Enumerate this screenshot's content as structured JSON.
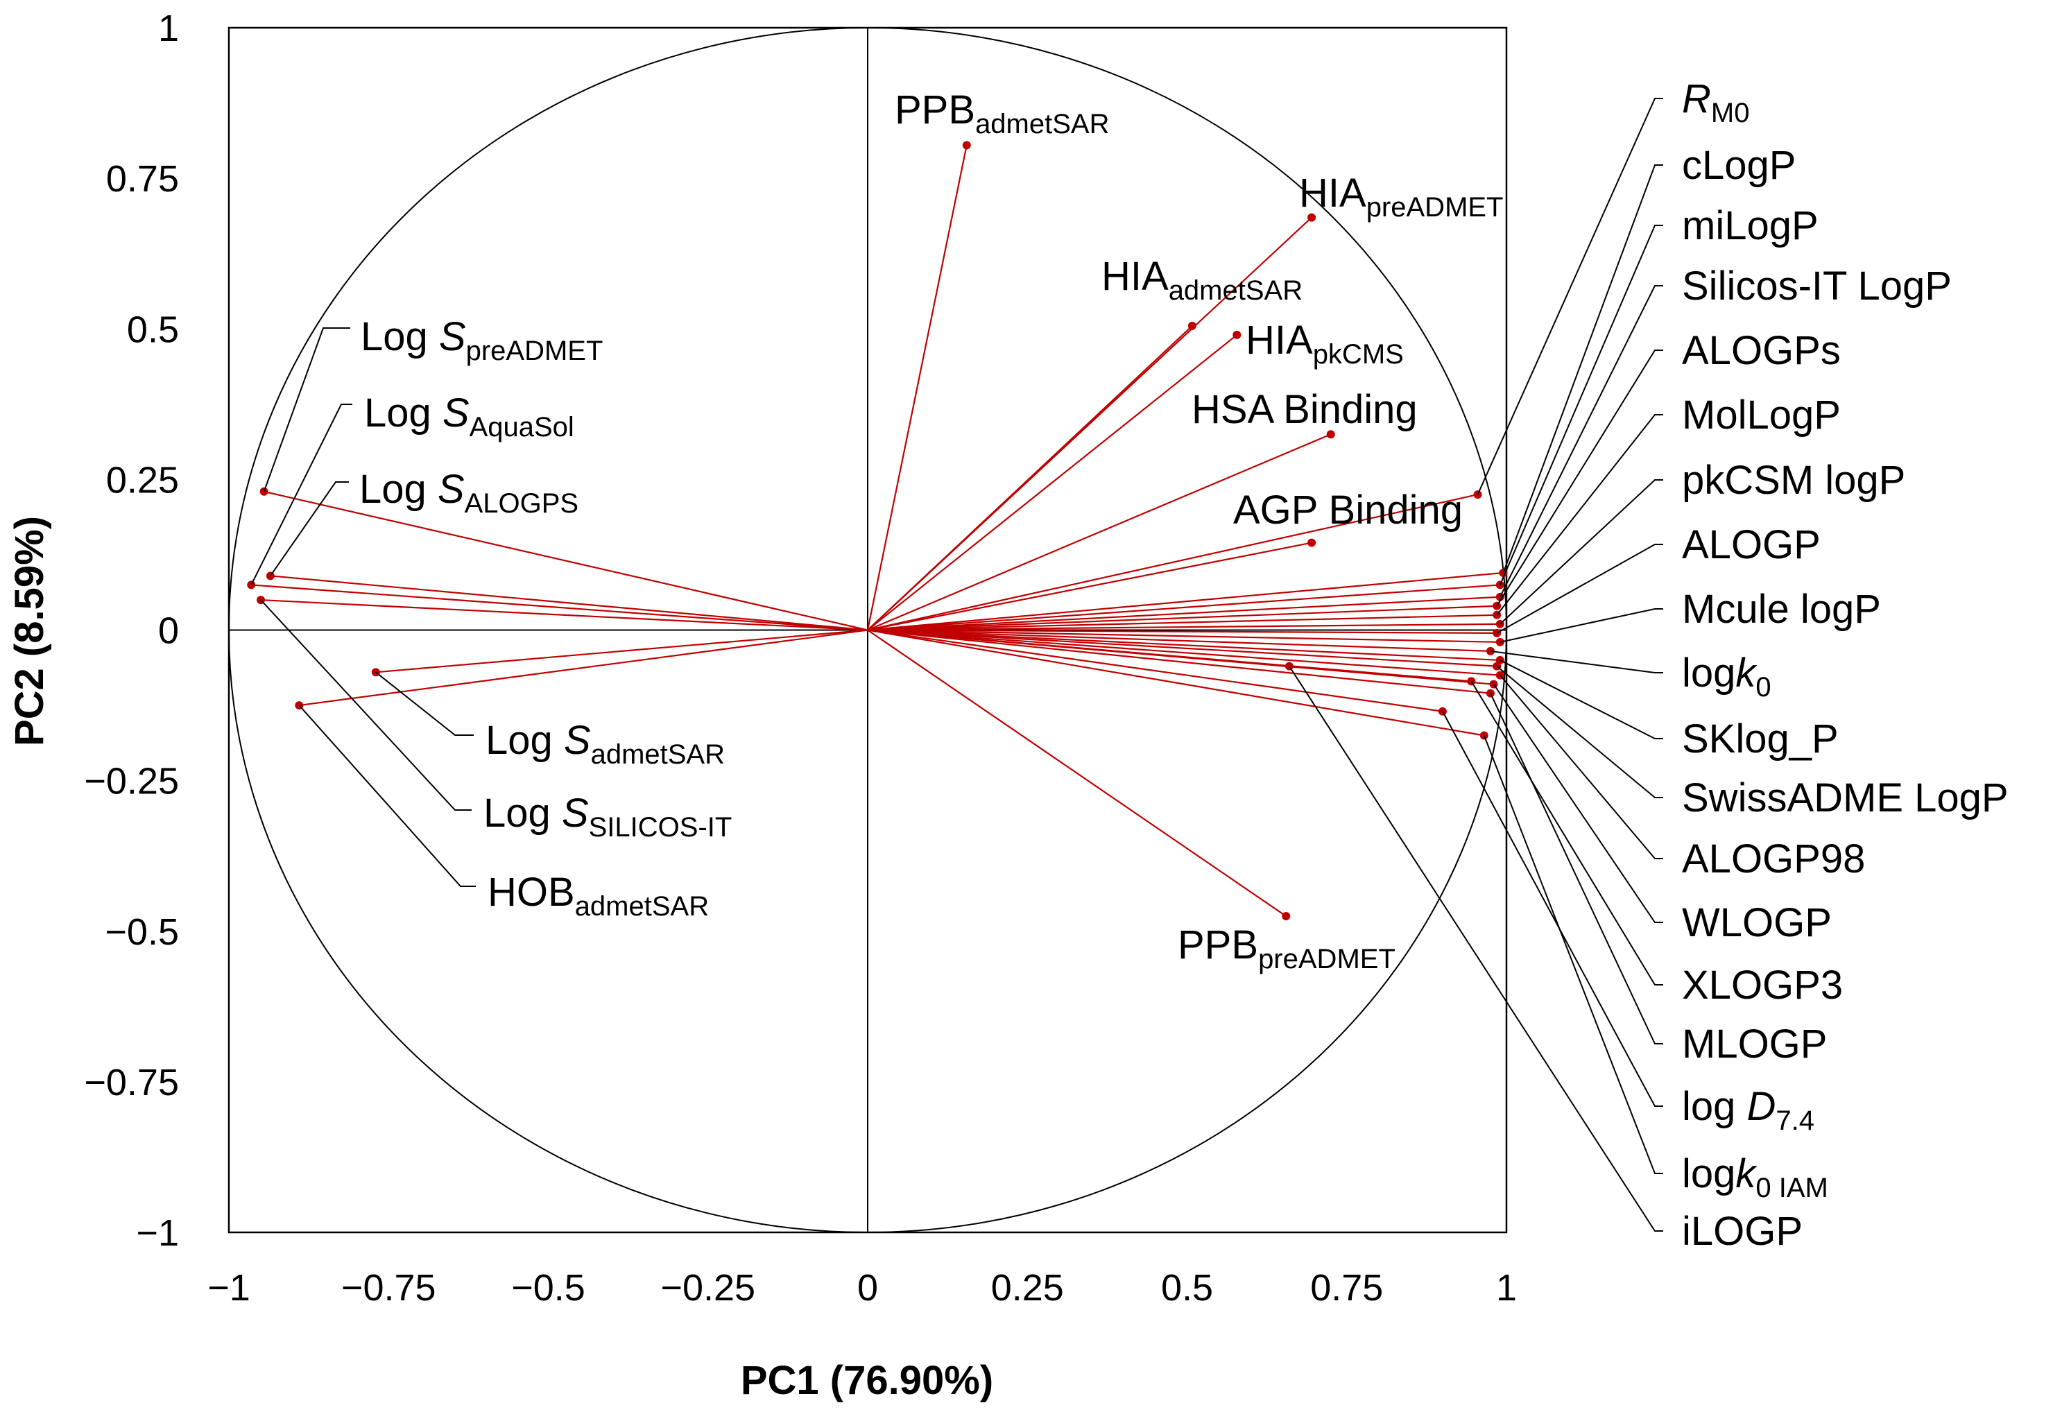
{
  "chart_data": {
    "type": "scatter",
    "subtype": "pca-correlation-circle",
    "xlabel": "PC1 (76.90%)",
    "ylabel": "PC2 (8.59%)",
    "xlim": [
      -1,
      1
    ],
    "ylim": [
      -1,
      1
    ],
    "xticks": [
      "−1",
      "−0.75",
      "−0.5",
      "−0.25",
      "0",
      "0.25",
      "0.5",
      "0.75",
      "1"
    ],
    "yticks": [
      "1",
      "0.75",
      "0.5",
      "0.25",
      "0",
      "−0.25",
      "−0.5",
      "−0.75",
      "−1"
    ],
    "colors": {
      "vector": "#c00000",
      "point": "#c00000",
      "leader": "#000000",
      "frame": "#000000"
    },
    "variables": [
      {
        "name": "Log S preADMET",
        "parts": [
          [
            "Log ",
            ""
          ],
          [
            "S",
            "i"
          ],
          [
            "preADMET",
            "s"
          ]
        ],
        "x": -0.945,
        "y": 0.23
      },
      {
        "name": "Log S AquaSol",
        "parts": [
          [
            "Log ",
            ""
          ],
          [
            "S",
            "i"
          ],
          [
            "AquaSol",
            "s"
          ]
        ],
        "x": -0.965,
        "y": 0.075
      },
      {
        "name": "Log S ALOGPS",
        "parts": [
          [
            "Log ",
            ""
          ],
          [
            "S",
            "i"
          ],
          [
            "ALOGPS",
            "s"
          ]
        ],
        "x": -0.935,
        "y": 0.09
      },
      {
        "name": "Log S admetSAR",
        "parts": [
          [
            "Log ",
            ""
          ],
          [
            "S",
            "i"
          ],
          [
            "admetSAR",
            "s"
          ]
        ],
        "x": -0.77,
        "y": -0.07
      },
      {
        "name": "Log S SILICOS-IT",
        "parts": [
          [
            "Log ",
            ""
          ],
          [
            "S",
            "i"
          ],
          [
            "SILICOS-IT",
            "s"
          ]
        ],
        "x": -0.95,
        "y": 0.05
      },
      {
        "name": "HOB admetSAR",
        "parts": [
          [
            "HOB",
            ""
          ],
          [
            "admetSAR",
            "s"
          ]
        ],
        "x": -0.89,
        "y": -0.125
      },
      {
        "name": "PPB admetSAR",
        "parts": [
          [
            "PPB",
            ""
          ],
          [
            "admetSAR",
            "s"
          ]
        ],
        "x": 0.155,
        "y": 0.805
      },
      {
        "name": "HIA preADMET",
        "parts": [
          [
            "HIA",
            ""
          ],
          [
            "preADMET",
            "s"
          ]
        ],
        "x": 0.695,
        "y": 0.685
      },
      {
        "name": "HIA admetSAR",
        "parts": [
          [
            "HIA",
            ""
          ],
          [
            "admetSAR",
            "s"
          ]
        ],
        "x": 0.508,
        "y": 0.505
      },
      {
        "name": "HIA pkCMS",
        "parts": [
          [
            "HIA",
            ""
          ],
          [
            "pkCMS",
            "s"
          ]
        ],
        "x": 0.578,
        "y": 0.49
      },
      {
        "name": "HSA Binding",
        "parts": [
          [
            "HSA Binding",
            ""
          ]
        ],
        "x": 0.725,
        "y": 0.325
      },
      {
        "name": "AGP Binding",
        "parts": [
          [
            "AGP Binding",
            ""
          ]
        ],
        "x": 0.695,
        "y": 0.145
      },
      {
        "name": "PPB preADMET",
        "parts": [
          [
            "PPB",
            ""
          ],
          [
            "preADMET",
            "s"
          ]
        ],
        "x": 0.655,
        "y": -0.475
      },
      {
        "name": "RM0",
        "parts": [
          [
            "R",
            "i"
          ],
          [
            "M0",
            "s"
          ]
        ],
        "x": 0.955,
        "y": 0.225
      },
      {
        "name": "cLogP",
        "parts": [
          [
            "cLogP",
            ""
          ]
        ],
        "x": 0.995,
        "y": 0.095
      },
      {
        "name": "miLogP",
        "parts": [
          [
            "miLogP",
            ""
          ]
        ],
        "x": 0.99,
        "y": 0.075
      },
      {
        "name": "Silicos-IT LogP",
        "parts": [
          [
            "Silicos-IT LogP",
            ""
          ]
        ],
        "x": 0.99,
        "y": 0.055
      },
      {
        "name": "ALOGPs",
        "parts": [
          [
            "ALOGPs",
            ""
          ]
        ],
        "x": 0.985,
        "y": 0.04
      },
      {
        "name": "MolLogP",
        "parts": [
          [
            "MolLogP",
            ""
          ]
        ],
        "x": 0.985,
        "y": 0.025
      },
      {
        "name": "pkCSM logP",
        "parts": [
          [
            "pkCSM logP",
            ""
          ]
        ],
        "x": 0.99,
        "y": 0.01
      },
      {
        "name": "ALOGP",
        "parts": [
          [
            "ALOGP",
            ""
          ]
        ],
        "x": 0.985,
        "y": -0.005
      },
      {
        "name": "Mcule logP",
        "parts": [
          [
            "Mcule logP",
            ""
          ]
        ],
        "x": 0.99,
        "y": -0.02
      },
      {
        "name": "logk0",
        "parts": [
          [
            "log",
            ""
          ],
          [
            "k",
            "i"
          ],
          [
            "0",
            "s"
          ]
        ],
        "x": 0.975,
        "y": -0.035
      },
      {
        "name": "SKlog_P",
        "parts": [
          [
            "SKlog_P",
            ""
          ]
        ],
        "x": 0.99,
        "y": -0.05
      },
      {
        "name": "SwissADME LogP",
        "parts": [
          [
            "SwissADME LogP",
            ""
          ]
        ],
        "x": 0.985,
        "y": -0.06
      },
      {
        "name": "ALOGP98",
        "parts": [
          [
            "ALOGP98",
            ""
          ]
        ],
        "x": 0.99,
        "y": -0.075
      },
      {
        "name": "WLOGP",
        "parts": [
          [
            "WLOGP",
            ""
          ]
        ],
        "x": 0.98,
        "y": -0.09
      },
      {
        "name": "XLOGP3",
        "parts": [
          [
            "XLOGP3",
            ""
          ]
        ],
        "x": 0.945,
        "y": -0.085
      },
      {
        "name": "MLOGP",
        "parts": [
          [
            "MLOGP",
            ""
          ]
        ],
        "x": 0.975,
        "y": -0.105
      },
      {
        "name": "log D7.4",
        "parts": [
          [
            "log ",
            ""
          ],
          [
            "D",
            "i"
          ],
          [
            "7.4",
            "s"
          ]
        ],
        "x": 0.9,
        "y": -0.135
      },
      {
        "name": "logk0 IAM",
        "parts": [
          [
            "log",
            ""
          ],
          [
            "k",
            "i"
          ],
          [
            "0 IAM",
            "s"
          ]
        ],
        "x": 0.965,
        "y": -0.175
      },
      {
        "name": "iLOGP",
        "parts": [
          [
            "iLOGP",
            ""
          ]
        ],
        "x": 0.66,
        "y": -0.06
      }
    ]
  }
}
